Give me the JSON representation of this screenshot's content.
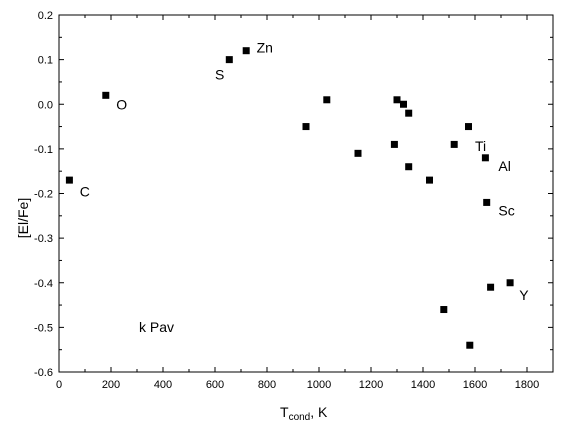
{
  "chart_data": {
    "type": "scatter",
    "title": "",
    "xlabel_main": "T",
    "xlabel_sub": "cond",
    "xlabel_suffix": ", K",
    "ylabel": "[El/Fe]",
    "xlim": [
      0,
      1900
    ],
    "ylim": [
      -0.6,
      0.2
    ],
    "x_ticks": [
      0,
      200,
      400,
      600,
      800,
      1000,
      1200,
      1400,
      1600,
      1800
    ],
    "y_ticks": [
      0.2,
      0.1,
      0.0,
      -0.1,
      -0.2,
      -0.3,
      -0.4,
      -0.5,
      -0.6
    ],
    "y_tick_labels": [
      "0.2",
      "0.1",
      "0.0",
      "-0.1",
      "-0.2",
      "-0.3",
      "-0.4",
      "-0.5",
      "-0.6"
    ],
    "grid": false,
    "legend": "none",
    "marker": "square",
    "color": "#000000",
    "star_label": "k Pav",
    "points": [
      {
        "x": 40,
        "y": -0.17
      },
      {
        "x": 180,
        "y": 0.02
      },
      {
        "x": 655,
        "y": 0.1
      },
      {
        "x": 720,
        "y": 0.12
      },
      {
        "x": 950,
        "y": -0.05
      },
      {
        "x": 1030,
        "y": 0.01
      },
      {
        "x": 1150,
        "y": -0.11
      },
      {
        "x": 1290,
        "y": -0.09
      },
      {
        "x": 1300,
        "y": 0.01
      },
      {
        "x": 1325,
        "y": 0.0
      },
      {
        "x": 1345,
        "y": -0.02
      },
      {
        "x": 1345,
        "y": -0.14
      },
      {
        "x": 1425,
        "y": -0.17
      },
      {
        "x": 1480,
        "y": -0.46
      },
      {
        "x": 1520,
        "y": -0.09
      },
      {
        "x": 1575,
        "y": -0.05
      },
      {
        "x": 1580,
        "y": -0.54
      },
      {
        "x": 1640,
        "y": -0.12
      },
      {
        "x": 1645,
        "y": -0.22
      },
      {
        "x": 1660,
        "y": -0.41
      },
      {
        "x": 1735,
        "y": -0.4
      }
    ],
    "annotations": [
      {
        "text": "C",
        "x": 80,
        "y": -0.195
      },
      {
        "text": "O",
        "x": 220,
        "y": 0.0
      },
      {
        "text": "S",
        "x": 600,
        "y": 0.067
      },
      {
        "text": "Zn",
        "x": 760,
        "y": 0.127
      },
      {
        "text": "Ti",
        "x": 1600,
        "y": -0.093
      },
      {
        "text": "Al",
        "x": 1690,
        "y": -0.138
      },
      {
        "text": "Sc",
        "x": 1690,
        "y": -0.238
      },
      {
        "text": "Y",
        "x": 1770,
        "y": -0.428
      }
    ]
  }
}
